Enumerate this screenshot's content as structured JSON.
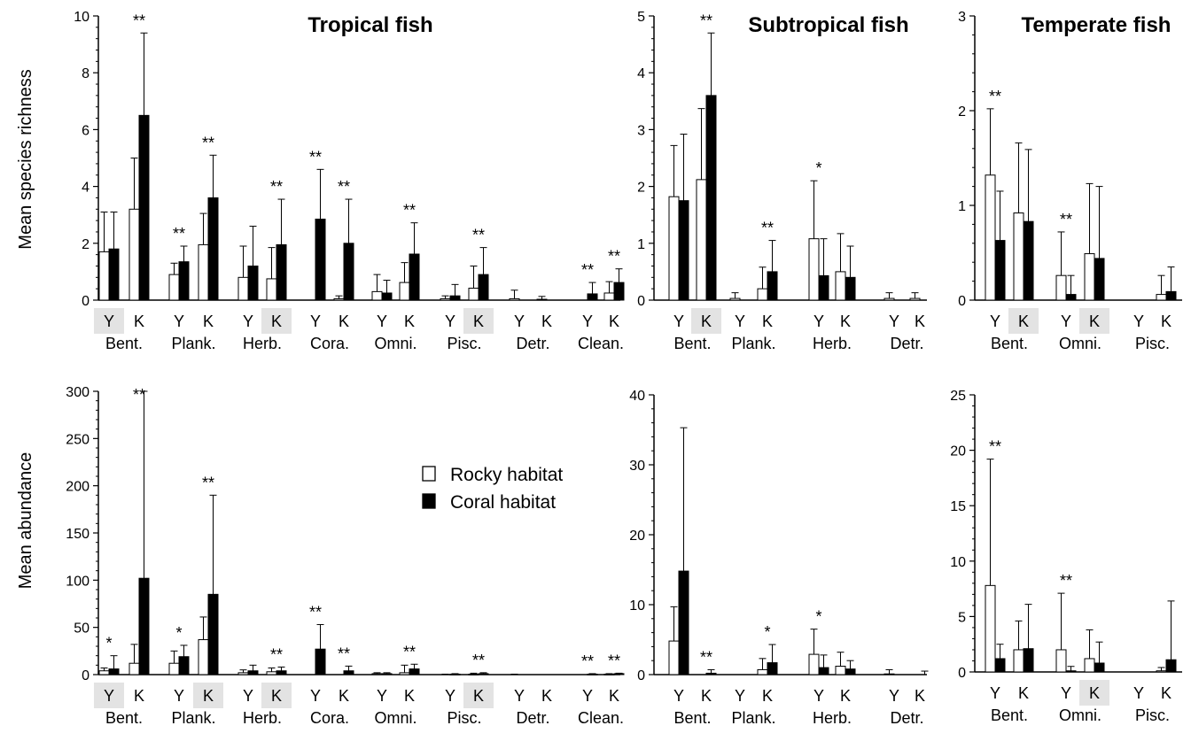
{
  "colors": {
    "rocky": "#ffffff",
    "coral": "#000000",
    "highlight": "#e3e3e3"
  },
  "labels": {
    "ylabel_richness": "Mean species richness",
    "ylabel_abundance": "Mean abundance"
  },
  "legend": {
    "rocky": "Rocky habitat",
    "coral": "Coral habitat"
  },
  "chart_data": [
    {
      "type": "bar",
      "region": "tropical",
      "metric": "richness",
      "title": "Tropical fish",
      "ylim": [
        0,
        10
      ],
      "yticks": [
        0,
        2,
        4,
        6,
        8,
        10
      ],
      "groups": [
        {
          "name": "Bent.",
          "sites": [
            {
              "label": "Y",
              "highlight": true,
              "rocky": 1.7,
              "rocky_err": 1.4,
              "coral": 1.8,
              "coral_err": 1.3,
              "sig": ""
            },
            {
              "label": "K",
              "highlight": false,
              "rocky": 3.2,
              "rocky_err": 1.8,
              "coral": 6.5,
              "coral_err": 2.9,
              "sig": "**"
            }
          ]
        },
        {
          "name": "Plank.",
          "sites": [
            {
              "label": "Y",
              "highlight": false,
              "rocky": 0.9,
              "rocky_err": 0.4,
              "coral": 1.35,
              "coral_err": 0.55,
              "sig": "**"
            },
            {
              "label": "K",
              "highlight": false,
              "rocky": 1.95,
              "rocky_err": 1.1,
              "coral": 3.6,
              "coral_err": 1.5,
              "sig": "**"
            }
          ]
        },
        {
          "name": "Herb.",
          "sites": [
            {
              "label": "Y",
              "highlight": false,
              "rocky": 0.8,
              "rocky_err": 1.1,
              "coral": 1.2,
              "coral_err": 1.4,
              "sig": ""
            },
            {
              "label": "K",
              "highlight": true,
              "rocky": 0.75,
              "rocky_err": 1.1,
              "coral": 1.95,
              "coral_err": 1.6,
              "sig": "**"
            }
          ]
        },
        {
          "name": "Cora.",
          "sites": [
            {
              "label": "Y",
              "highlight": false,
              "rocky": 0,
              "rocky_err": 0,
              "coral": 2.85,
              "coral_err": 1.75,
              "sig": "**"
            },
            {
              "label": "K",
              "highlight": false,
              "rocky": 0.05,
              "rocky_err": 0.1,
              "coral": 2.0,
              "coral_err": 1.55,
              "sig": "**"
            }
          ]
        },
        {
          "name": "Omni.",
          "sites": [
            {
              "label": "Y",
              "highlight": false,
              "rocky": 0.3,
              "rocky_err": 0.6,
              "coral": 0.25,
              "coral_err": 0.45,
              "sig": ""
            },
            {
              "label": "K",
              "highlight": false,
              "rocky": 0.62,
              "rocky_err": 0.7,
              "coral": 1.62,
              "coral_err": 1.1,
              "sig": "**"
            }
          ]
        },
        {
          "name": "Pisc.",
          "sites": [
            {
              "label": "Y",
              "highlight": false,
              "rocky": 0.05,
              "rocky_err": 0.1,
              "coral": 0.15,
              "coral_err": 0.4,
              "sig": ""
            },
            {
              "label": "K",
              "highlight": true,
              "rocky": 0.42,
              "rocky_err": 0.78,
              "coral": 0.9,
              "coral_err": 0.95,
              "sig": "**"
            }
          ]
        },
        {
          "name": "Detr.",
          "sites": [
            {
              "label": "Y",
              "highlight": false,
              "rocky": 0.05,
              "rocky_err": 0.3,
              "coral": 0,
              "coral_err": 0,
              "sig": ""
            },
            {
              "label": "K",
              "highlight": false,
              "rocky": 0.03,
              "rocky_err": 0.1,
              "coral": 0,
              "coral_err": 0,
              "sig": ""
            }
          ]
        },
        {
          "name": "Clean.",
          "sites": [
            {
              "label": "Y",
              "highlight": false,
              "rocky": 0,
              "rocky_err": 0,
              "coral": 0.22,
              "coral_err": 0.4,
              "sig": "**"
            },
            {
              "label": "K",
              "highlight": false,
              "rocky": 0.25,
              "rocky_err": 0.4,
              "coral": 0.62,
              "coral_err": 0.48,
              "sig": "**"
            }
          ]
        }
      ]
    },
    {
      "type": "bar",
      "region": "subtropical",
      "metric": "richness",
      "title": "Subtropical fish",
      "ylim": [
        0,
        5
      ],
      "yticks": [
        0,
        1,
        2,
        3,
        4,
        5
      ],
      "groups": [
        {
          "name": "Bent.",
          "sites": [
            {
              "label": "Y",
              "highlight": false,
              "rocky": 1.82,
              "rocky_err": 0.9,
              "coral": 1.75,
              "coral_err": 1.17,
              "sig": ""
            },
            {
              "label": "K",
              "highlight": true,
              "rocky": 2.12,
              "rocky_err": 1.25,
              "coral": 3.6,
              "coral_err": 1.1,
              "sig": "**"
            }
          ]
        },
        {
          "name": "Plank.",
          "sites": [
            {
              "label": "Y",
              "highlight": false,
              "rocky": 0.03,
              "rocky_err": 0.1,
              "coral": 0,
              "coral_err": 0,
              "sig": ""
            },
            {
              "label": "K",
              "highlight": false,
              "rocky": 0.2,
              "rocky_err": 0.38,
              "coral": 0.5,
              "coral_err": 0.55,
              "sig": "**"
            }
          ]
        },
        {
          "name": "Herb.",
          "sites": [
            {
              "label": "Y",
              "highlight": false,
              "rocky": 1.08,
              "rocky_err": 1.02,
              "coral": 0.43,
              "coral_err": 0.65,
              "sig": "*"
            },
            {
              "label": "K",
              "highlight": false,
              "rocky": 0.5,
              "rocky_err": 0.67,
              "coral": 0.4,
              "coral_err": 0.55,
              "sig": ""
            }
          ]
        },
        {
          "name": "Detr.",
          "sites": [
            {
              "label": "Y",
              "highlight": false,
              "rocky": 0.03,
              "rocky_err": 0.1,
              "coral": 0,
              "coral_err": 0,
              "sig": ""
            },
            {
              "label": "K",
              "highlight": false,
              "rocky": 0.03,
              "rocky_err": 0.1,
              "coral": 0,
              "coral_err": 0,
              "sig": ""
            }
          ]
        }
      ]
    },
    {
      "type": "bar",
      "region": "temperate",
      "metric": "richness",
      "title": "Temperate fish",
      "ylim": [
        0,
        3
      ],
      "yticks": [
        0,
        1,
        2,
        3
      ],
      "groups": [
        {
          "name": "Bent.",
          "sites": [
            {
              "label": "Y",
              "highlight": false,
              "rocky": 1.32,
              "rocky_err": 0.7,
              "coral": 0.63,
              "coral_err": 0.52,
              "sig": "**"
            },
            {
              "label": "K",
              "highlight": true,
              "rocky": 0.92,
              "rocky_err": 0.74,
              "coral": 0.83,
              "coral_err": 0.76,
              "sig": ""
            }
          ]
        },
        {
          "name": "Omni.",
          "sites": [
            {
              "label": "Y",
              "highlight": false,
              "rocky": 0.26,
              "rocky_err": 0.46,
              "coral": 0.06,
              "coral_err": 0.2,
              "sig": "**"
            },
            {
              "label": "K",
              "highlight": true,
              "rocky": 0.49,
              "rocky_err": 0.74,
              "coral": 0.44,
              "coral_err": 0.76,
              "sig": ""
            }
          ]
        },
        {
          "name": "Pisc.",
          "sites": [
            {
              "label": "Y",
              "highlight": false,
              "rocky": 0,
              "rocky_err": 0,
              "coral": 0,
              "coral_err": 0,
              "sig": ""
            },
            {
              "label": "K",
              "highlight": false,
              "rocky": 0.06,
              "rocky_err": 0.2,
              "coral": 0.09,
              "coral_err": 0.26,
              "sig": ""
            }
          ]
        }
      ]
    },
    {
      "type": "bar",
      "region": "tropical",
      "metric": "abundance",
      "title": "",
      "ylim": [
        0,
        300
      ],
      "yticks": [
        0,
        50,
        100,
        150,
        200,
        250,
        300
      ],
      "groups": [
        {
          "name": "Bent.",
          "sites": [
            {
              "label": "Y",
              "highlight": true,
              "rocky": 4,
              "rocky_err": 3,
              "coral": 6,
              "coral_err": 14,
              "sig": "*"
            },
            {
              "label": "K",
              "highlight": false,
              "rocky": 12,
              "rocky_err": 20,
              "coral": 102,
              "coral_err": 198,
              "sig": "**"
            }
          ]
        },
        {
          "name": "Plank.",
          "sites": [
            {
              "label": "Y",
              "highlight": false,
              "rocky": 12,
              "rocky_err": 13,
              "coral": 19,
              "coral_err": 12,
              "sig": "*"
            },
            {
              "label": "K",
              "highlight": true,
              "rocky": 37,
              "rocky_err": 24,
              "coral": 85,
              "coral_err": 105,
              "sig": "**"
            }
          ]
        },
        {
          "name": "Herb.",
          "sites": [
            {
              "label": "Y",
              "highlight": false,
              "rocky": 2,
              "rocky_err": 3,
              "coral": 4,
              "coral_err": 6,
              "sig": ""
            },
            {
              "label": "K",
              "highlight": true,
              "rocky": 3,
              "rocky_err": 4,
              "coral": 4,
              "coral_err": 4,
              "sig": "**"
            }
          ]
        },
        {
          "name": "Cora.",
          "sites": [
            {
              "label": "Y",
              "highlight": false,
              "rocky": 0,
              "rocky_err": 0,
              "coral": 27,
              "coral_err": 26,
              "sig": "**"
            },
            {
              "label": "K",
              "highlight": false,
              "rocky": 0,
              "rocky_err": 0,
              "coral": 4,
              "coral_err": 5,
              "sig": "**"
            }
          ]
        },
        {
          "name": "Omni.",
          "sites": [
            {
              "label": "Y",
              "highlight": false,
              "rocky": 1,
              "rocky_err": 1,
              "coral": 1,
              "coral_err": 1,
              "sig": ""
            },
            {
              "label": "K",
              "highlight": false,
              "rocky": 2,
              "rocky_err": 8,
              "coral": 6,
              "coral_err": 5,
              "sig": "**"
            }
          ]
        },
        {
          "name": "Pisc.",
          "sites": [
            {
              "label": "Y",
              "highlight": false,
              "rocky": 0,
              "rocky_err": 0.5,
              "coral": 0.5,
              "coral_err": 0.5,
              "sig": ""
            },
            {
              "label": "K",
              "highlight": true,
              "rocky": 0.5,
              "rocky_err": 1,
              "coral": 1,
              "coral_err": 1,
              "sig": "**"
            }
          ]
        },
        {
          "name": "Detr.",
          "sites": [
            {
              "label": "Y",
              "highlight": false,
              "rocky": 0,
              "rocky_err": 0.5,
              "coral": 0,
              "coral_err": 0,
              "sig": ""
            },
            {
              "label": "K",
              "highlight": false,
              "rocky": 0,
              "rocky_err": 0,
              "coral": 0,
              "coral_err": 0,
              "sig": ""
            }
          ]
        },
        {
          "name": "Clean.",
          "sites": [
            {
              "label": "Y",
              "highlight": false,
              "rocky": 0,
              "rocky_err": 0,
              "coral": 0.5,
              "coral_err": 0.5,
              "sig": "**"
            },
            {
              "label": "K",
              "highlight": false,
              "rocky": 0.5,
              "rocky_err": 0.5,
              "coral": 1,
              "coral_err": 0.5,
              "sig": "**"
            }
          ]
        }
      ]
    },
    {
      "type": "bar",
      "region": "subtropical",
      "metric": "abundance",
      "title": "",
      "ylim": [
        0,
        40
      ],
      "yticks": [
        0,
        10,
        20,
        30,
        40
      ],
      "groups": [
        {
          "name": "Bent.",
          "sites": [
            {
              "label": "Y",
              "highlight": false,
              "rocky": 4.8,
              "rocky_err": 4.9,
              "coral": 14.8,
              "coral_err": 20.5,
              "sig": ""
            },
            {
              "label": "K",
              "highlight": false,
              "rocky": 0,
              "rocky_err": 0,
              "coral": 0.2,
              "coral_err": 0.5,
              "sig": "**"
            }
          ]
        },
        {
          "name": "Plank.",
          "sites": [
            {
              "label": "Y",
              "highlight": false,
              "rocky": 0,
              "rocky_err": 0,
              "coral": 0,
              "coral_err": 0,
              "sig": ""
            },
            {
              "label": "K",
              "highlight": false,
              "rocky": 0.7,
              "rocky_err": 1.6,
              "coral": 1.7,
              "coral_err": 2.6,
              "sig": "*"
            }
          ]
        },
        {
          "name": "Herb.",
          "sites": [
            {
              "label": "Y",
              "highlight": false,
              "rocky": 2.9,
              "rocky_err": 3.6,
              "coral": 1.0,
              "coral_err": 1.8,
              "sig": "*"
            },
            {
              "label": "K",
              "highlight": false,
              "rocky": 1.2,
              "rocky_err": 2.0,
              "coral": 0.8,
              "coral_err": 1.2,
              "sig": ""
            }
          ]
        },
        {
          "name": "Detr.",
          "sites": [
            {
              "label": "Y",
              "highlight": false,
              "rocky": 0.1,
              "rocky_err": 0.6,
              "coral": 0,
              "coral_err": 0,
              "sig": ""
            },
            {
              "label": "K",
              "highlight": false,
              "rocky": 0,
              "rocky_err": 0,
              "coral": 0,
              "coral_err": 0.5,
              "sig": ""
            }
          ]
        }
      ]
    },
    {
      "type": "bar",
      "region": "temperate",
      "metric": "abundance",
      "title": "",
      "ylim": [
        0,
        25
      ],
      "yticks": [
        0,
        5,
        10,
        15,
        20,
        25
      ],
      "groups": [
        {
          "name": "Bent.",
          "sites": [
            {
              "label": "Y",
              "highlight": false,
              "rocky": 7.8,
              "rocky_err": 11.4,
              "coral": 1.2,
              "coral_err": 1.3,
              "sig": "**"
            },
            {
              "label": "K",
              "highlight": false,
              "rocky": 2.0,
              "rocky_err": 2.6,
              "coral": 2.1,
              "coral_err": 4.0,
              "sig": ""
            }
          ]
        },
        {
          "name": "Omni.",
          "sites": [
            {
              "label": "Y",
              "highlight": false,
              "rocky": 2.0,
              "rocky_err": 5.1,
              "coral": 0.1,
              "coral_err": 0.4,
              "sig": "**"
            },
            {
              "label": "K",
              "highlight": true,
              "rocky": 1.2,
              "rocky_err": 2.6,
              "coral": 0.8,
              "coral_err": 1.9,
              "sig": ""
            }
          ]
        },
        {
          "name": "Pisc.",
          "sites": [
            {
              "label": "Y",
              "highlight": false,
              "rocky": 0,
              "rocky_err": 0,
              "coral": 0,
              "coral_err": 0,
              "sig": ""
            },
            {
              "label": "K",
              "highlight": false,
              "rocky": 0.1,
              "rocky_err": 0.3,
              "coral": 1.1,
              "coral_err": 5.3,
              "sig": ""
            }
          ]
        }
      ]
    }
  ]
}
